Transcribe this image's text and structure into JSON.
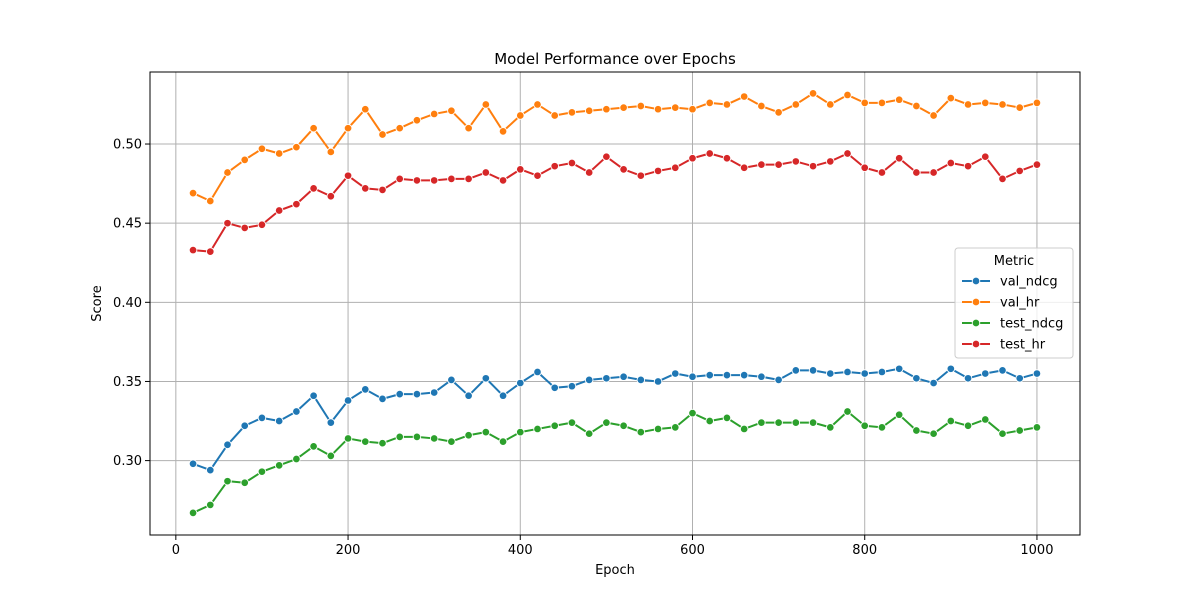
{
  "chart_data": {
    "type": "line",
    "title": "Model Performance over Epochs",
    "xlabel": "Epoch",
    "ylabel": "Score",
    "xlim": [
      -30,
      1050
    ],
    "ylim": [
      0.253,
      0.5455
    ],
    "xticks": [
      0,
      200,
      400,
      600,
      800,
      1000
    ],
    "yticks": [
      0.3,
      0.35,
      0.4,
      0.45,
      0.5
    ],
    "ytick_labels": [
      "0.30",
      "0.35",
      "0.40",
      "0.45",
      "0.50"
    ],
    "grid": true,
    "legend": {
      "title": "Metric",
      "placement": "center-right"
    },
    "x": [
      20,
      40,
      60,
      80,
      100,
      120,
      140,
      160,
      180,
      200,
      220,
      240,
      260,
      280,
      300,
      320,
      340,
      360,
      380,
      400,
      420,
      440,
      460,
      480,
      500,
      520,
      540,
      560,
      580,
      600,
      620,
      640,
      660,
      680,
      700,
      720,
      740,
      760,
      780,
      800,
      820,
      840,
      860,
      880,
      900,
      920,
      940,
      960,
      980,
      1000
    ],
    "series": [
      {
        "name": "val_ndcg",
        "color": "#1f77b4",
        "values": [
          0.298,
          0.294,
          0.31,
          0.322,
          0.327,
          0.325,
          0.331,
          0.341,
          0.324,
          0.338,
          0.345,
          0.339,
          0.342,
          0.342,
          0.343,
          0.351,
          0.341,
          0.352,
          0.341,
          0.349,
          0.356,
          0.346,
          0.347,
          0.351,
          0.352,
          0.353,
          0.351,
          0.35,
          0.355,
          0.353,
          0.354,
          0.354,
          0.354,
          0.353,
          0.351,
          0.357,
          0.357,
          0.355,
          0.356,
          0.355,
          0.356,
          0.358,
          0.352,
          0.349,
          0.358,
          0.352,
          0.355,
          0.357,
          0.352,
          0.355
        ]
      },
      {
        "name": "val_hr",
        "color": "#ff7f0e",
        "values": [
          0.469,
          0.464,
          0.482,
          0.49,
          0.497,
          0.494,
          0.498,
          0.51,
          0.495,
          0.51,
          0.522,
          0.506,
          0.51,
          0.515,
          0.519,
          0.521,
          0.51,
          0.525,
          0.508,
          0.518,
          0.525,
          0.518,
          0.52,
          0.521,
          0.522,
          0.523,
          0.524,
          0.522,
          0.523,
          0.522,
          0.526,
          0.525,
          0.53,
          0.524,
          0.52,
          0.525,
          0.532,
          0.525,
          0.531,
          0.526,
          0.526,
          0.528,
          0.524,
          0.518,
          0.529,
          0.525,
          0.526,
          0.525,
          0.523,
          0.526
        ]
      },
      {
        "name": "test_ndcg",
        "color": "#2ca02c",
        "values": [
          0.267,
          0.272,
          0.287,
          0.286,
          0.293,
          0.297,
          0.301,
          0.309,
          0.303,
          0.314,
          0.312,
          0.311,
          0.315,
          0.315,
          0.314,
          0.312,
          0.316,
          0.318,
          0.312,
          0.318,
          0.32,
          0.322,
          0.324,
          0.317,
          0.324,
          0.322,
          0.318,
          0.32,
          0.321,
          0.33,
          0.325,
          0.327,
          0.32,
          0.324,
          0.324,
          0.324,
          0.324,
          0.321,
          0.331,
          0.322,
          0.321,
          0.329,
          0.319,
          0.317,
          0.325,
          0.322,
          0.326,
          0.317,
          0.319,
          0.321
        ]
      },
      {
        "name": "test_hr",
        "color": "#d62728",
        "values": [
          0.433,
          0.432,
          0.45,
          0.447,
          0.449,
          0.458,
          0.462,
          0.472,
          0.467,
          0.48,
          0.472,
          0.471,
          0.478,
          0.477,
          0.477,
          0.478,
          0.478,
          0.482,
          0.477,
          0.484,
          0.48,
          0.486,
          0.488,
          0.482,
          0.492,
          0.484,
          0.48,
          0.483,
          0.485,
          0.491,
          0.494,
          0.491,
          0.485,
          0.487,
          0.487,
          0.489,
          0.486,
          0.489,
          0.494,
          0.485,
          0.482,
          0.491,
          0.482,
          0.482,
          0.488,
          0.486,
          0.492,
          0.478,
          0.483,
          0.487
        ]
      }
    ]
  }
}
